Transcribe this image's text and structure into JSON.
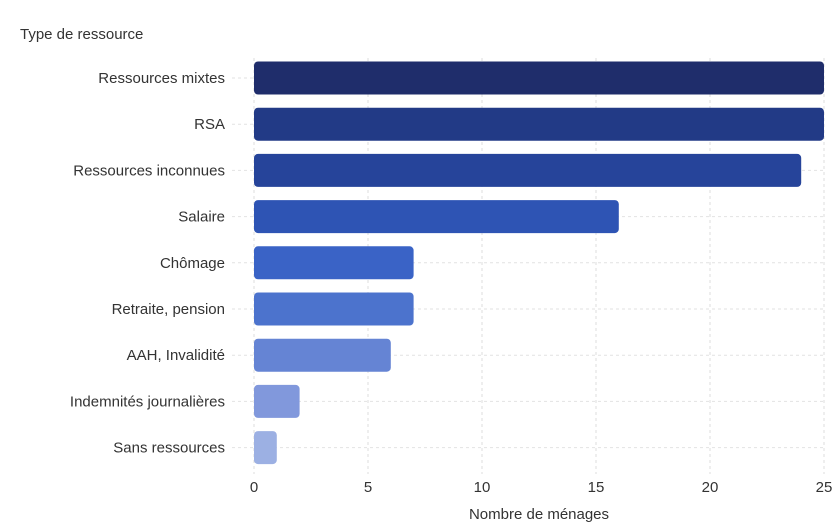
{
  "chart_data": {
    "type": "bar",
    "orientation": "horizontal",
    "title": "",
    "category_axis_label": "Type de ressource",
    "xlabel": "Nombre de ménages",
    "ylabel": "Type de ressource",
    "categories": [
      "Ressources mixtes",
      "RSA",
      "Ressources inconnues",
      "Salaire",
      "Chômage",
      "Retraite, pension",
      "AAH, Invalidité",
      "Indemnités journalières",
      "Sans ressources"
    ],
    "values": [
      25,
      25,
      24,
      16,
      7,
      7,
      6,
      2,
      1
    ],
    "xlim": [
      0,
      25
    ],
    "xticks": [
      0,
      5,
      10,
      15,
      20,
      25
    ],
    "grid": true,
    "legend": "none",
    "colors": [
      "#1f2d6b",
      "#223a86",
      "#26449a",
      "#2e54b4",
      "#3a63c6",
      "#4c73cd",
      "#6584d4",
      "#8198dc",
      "#9cb0e3"
    ]
  }
}
